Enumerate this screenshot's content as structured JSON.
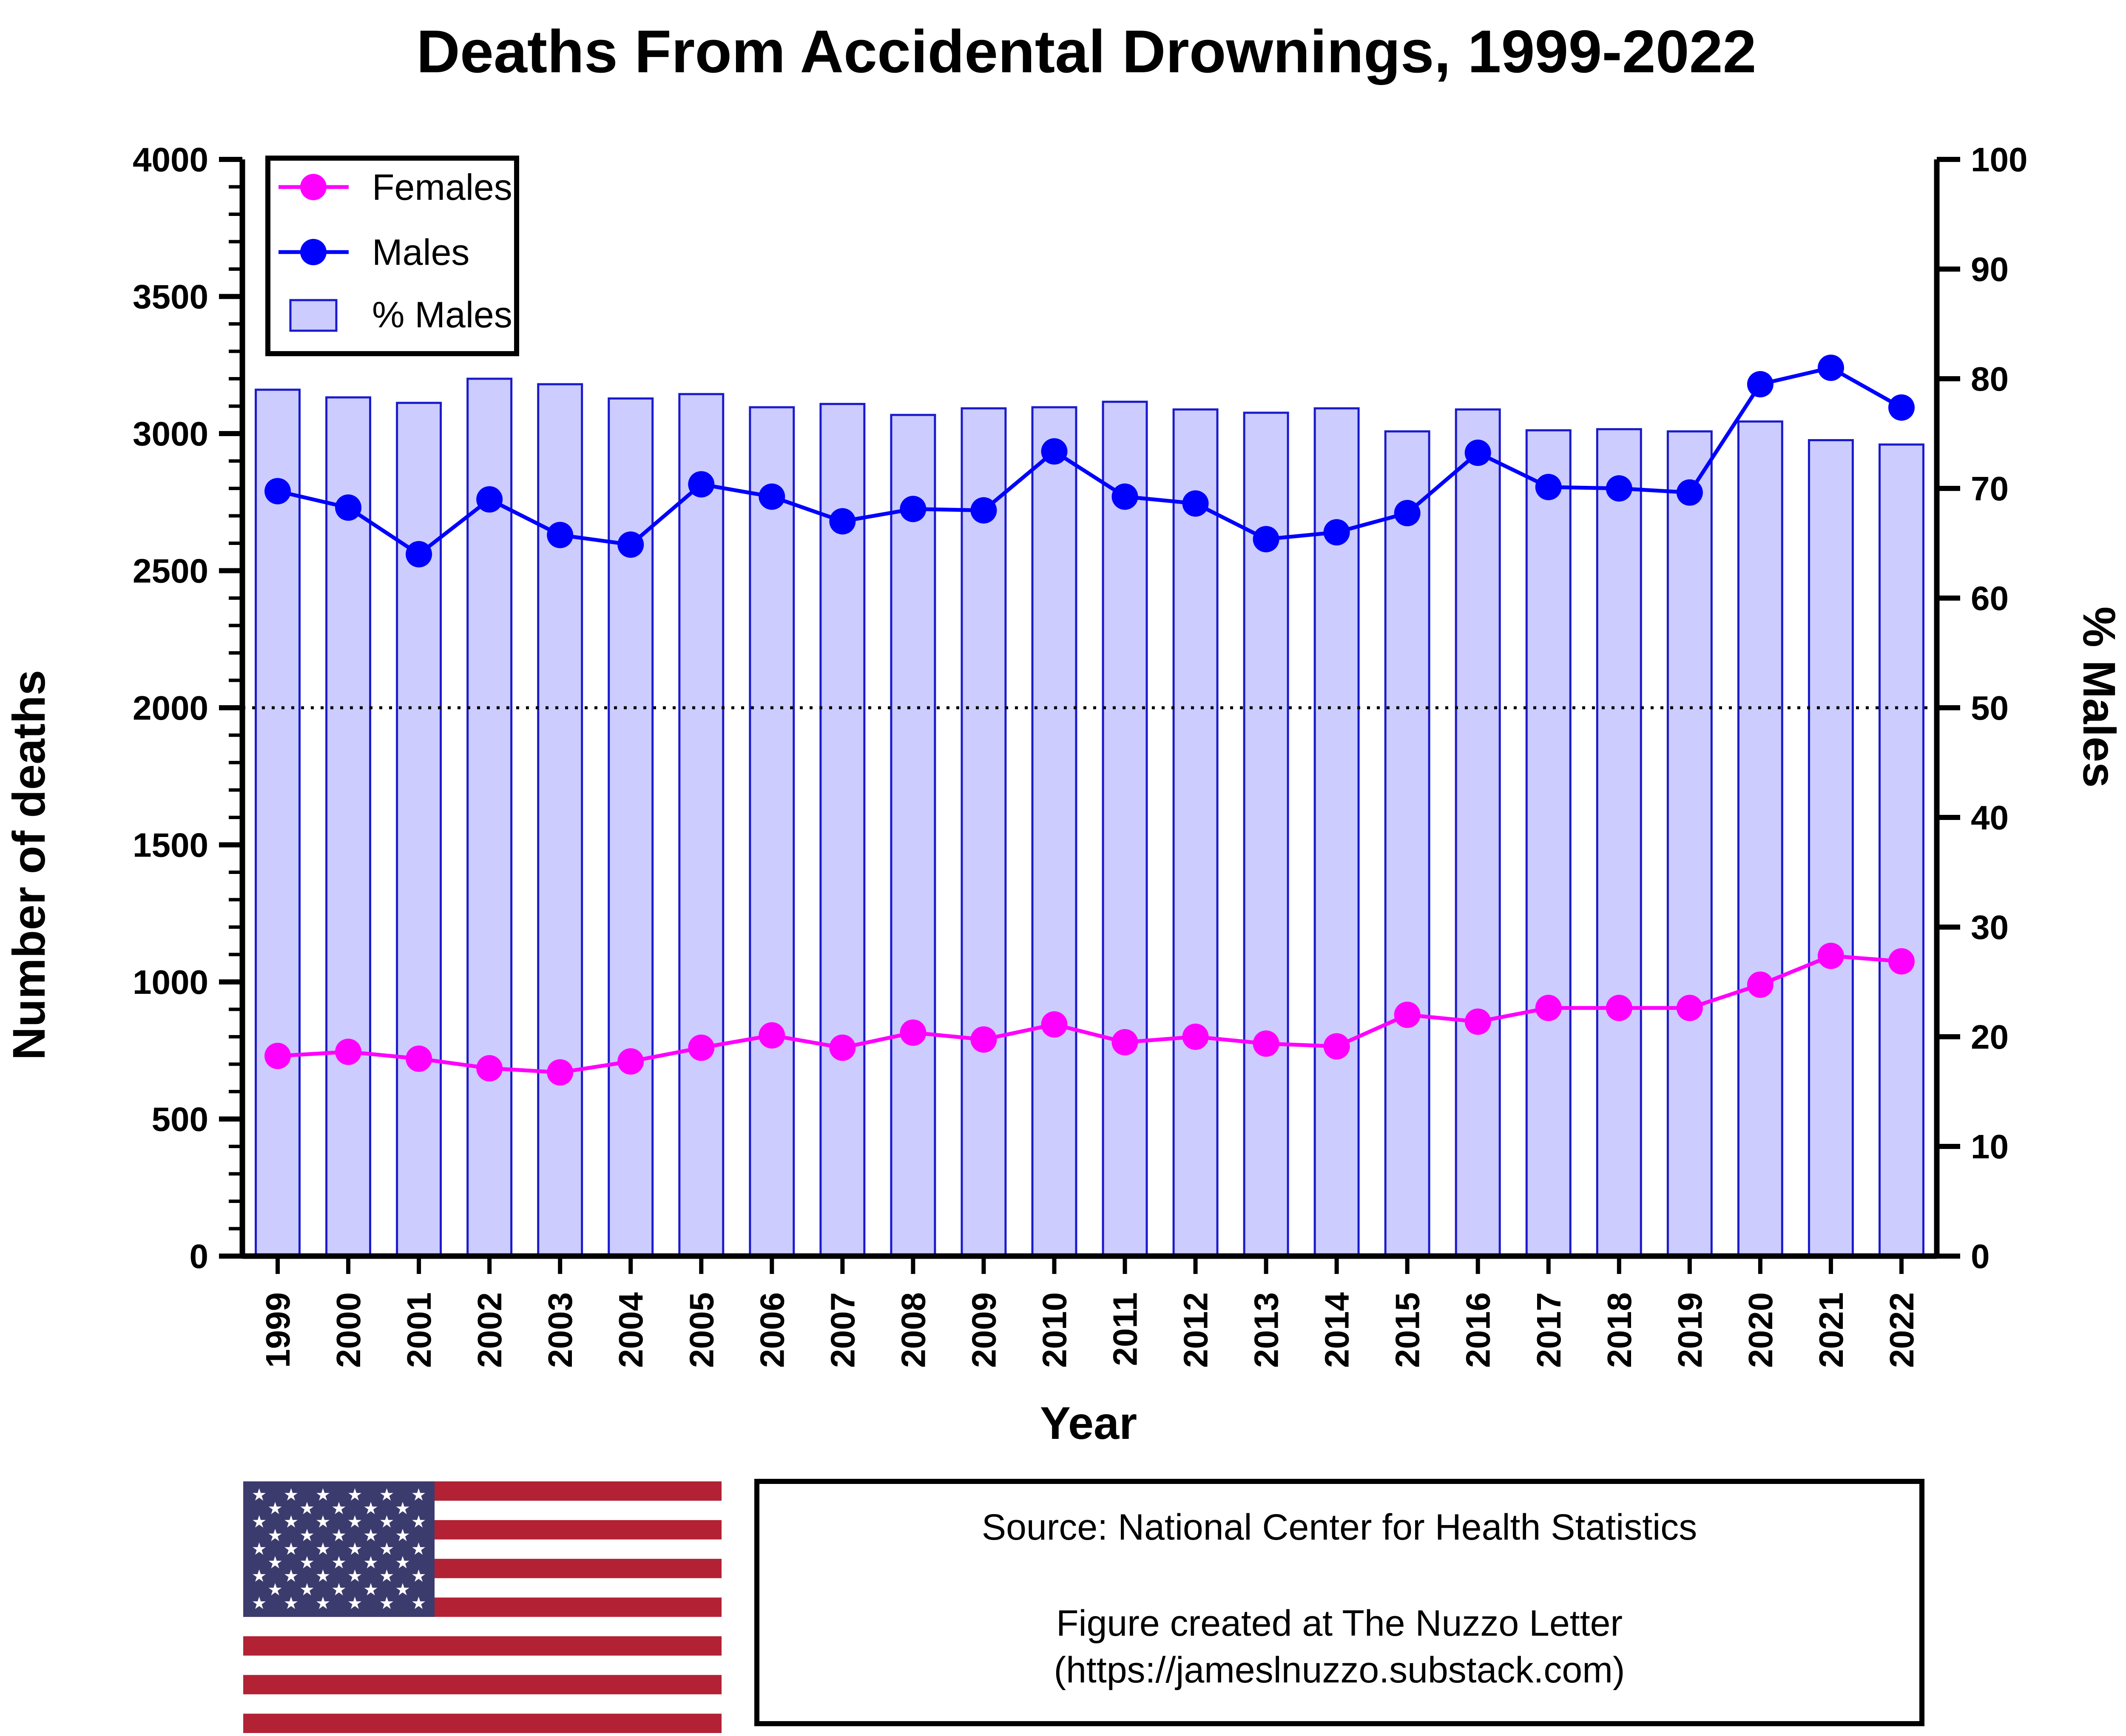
{
  "chart_data": {
    "type": "bar+line",
    "title": "Deaths From Accidental Drownings, 1999-2022",
    "xlabel": "Year",
    "ylabel": "Number of deaths",
    "y2label": "% Males",
    "ylim": [
      0,
      4000
    ],
    "y2lim": [
      0,
      100
    ],
    "yticks": [
      0,
      500,
      1000,
      1500,
      2000,
      2500,
      3000,
      3500,
      4000
    ],
    "y2ticks": [
      0,
      10,
      20,
      30,
      40,
      50,
      60,
      70,
      80,
      90,
      100
    ],
    "reference_line": {
      "axis": "y2",
      "value": 50,
      "style": "dotted"
    },
    "categories": [
      "1999",
      "2000",
      "2001",
      "2002",
      "2003",
      "2004",
      "2005",
      "2006",
      "2007",
      "2008",
      "2009",
      "2010",
      "2011",
      "2012",
      "2013",
      "2014",
      "2015",
      "2016",
      "2017",
      "2018",
      "2019",
      "2020",
      "2021",
      "2022"
    ],
    "series": [
      {
        "name": "Females",
        "type": "line",
        "axis": "y",
        "color": "#ff00ff",
        "values": [
          730,
          745,
          720,
          685,
          670,
          710,
          760,
          805,
          760,
          815,
          790,
          845,
          780,
          800,
          775,
          765,
          880,
          855,
          905,
          905,
          905,
          990,
          1095,
          1075
        ]
      },
      {
        "name": "Males",
        "type": "line",
        "axis": "y",
        "color": "#0000ff",
        "values": [
          2790,
          2730,
          2560,
          2760,
          2630,
          2595,
          2815,
          2770,
          2680,
          2725,
          2720,
          2935,
          2770,
          2745,
          2615,
          2640,
          2710,
          2930,
          2805,
          2800,
          2785,
          3180,
          3240,
          3095
        ]
      },
      {
        "name": "% Males",
        "type": "bar",
        "axis": "y2",
        "color": "#ccccff",
        "edge": "#1a1acc",
        "values": [
          79.0,
          78.3,
          77.8,
          80.0,
          79.5,
          78.2,
          78.6,
          77.4,
          77.7,
          76.7,
          77.3,
          77.4,
          77.9,
          77.2,
          76.9,
          77.3,
          75.2,
          77.2,
          75.3,
          75.4,
          75.2,
          76.1,
          74.4,
          74.0
        ]
      }
    ],
    "legend": {
      "position": "top-left",
      "entries": [
        "Females",
        "Males",
        "% Males"
      ]
    }
  },
  "source_box": {
    "line1": "Source: National Center for Health Statistics",
    "line2": "Figure created at The Nuzzo Letter",
    "line3": "(https://jameslnuzzo.substack.com)"
  },
  "flag": {
    "name": "us-flag-icon",
    "blue": "#3c3b6e",
    "red": "#b22234",
    "white": "#ffffff"
  }
}
